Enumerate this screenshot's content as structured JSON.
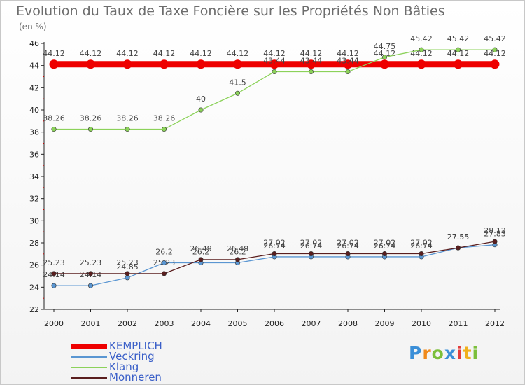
{
  "chart_data": {
    "type": "line",
    "title": "Evolution du Taux de Taxe Foncière sur les Propriétés Non Bâties",
    "ylabel": "(en %)",
    "xlabel": "",
    "categories": [
      "2000",
      "2001",
      "2002",
      "2003",
      "2004",
      "2005",
      "2006",
      "2007",
      "2008",
      "2009",
      "2010",
      "2011",
      "2012"
    ],
    "ylim": [
      22,
      46
    ],
    "yticks": [
      22,
      24,
      26,
      28,
      30,
      32,
      34,
      36,
      38,
      40,
      42,
      44,
      46
    ],
    "grid": false,
    "legend_position": "bottom-left",
    "series": [
      {
        "name": "KEMPLICH",
        "color": "#ee0000",
        "values": [
          44.12,
          44.12,
          44.12,
          44.12,
          44.12,
          44.12,
          44.12,
          44.12,
          44.12,
          44.12,
          44.12,
          44.12,
          44.12
        ],
        "labels": [
          "44.12",
          "44.12",
          "44.12",
          "44.12",
          "44.12",
          "44.12",
          "44.12",
          "44.12",
          "44.12",
          "44.12",
          "44.12",
          "44.12",
          "44.12"
        ]
      },
      {
        "name": "Veckring",
        "color": "#5a96d2",
        "values": [
          24.14,
          24.14,
          24.85,
          26.2,
          26.2,
          26.2,
          26.74,
          26.74,
          26.74,
          26.74,
          26.74,
          27.55,
          27.83
        ],
        "labels": [
          "24.14",
          "24.14",
          "24.85",
          "26.2",
          "26.2",
          "26.2",
          "26.74",
          "26.74",
          "26.74",
          "26.74",
          "26.74",
          "27.55",
          "27.83"
        ]
      },
      {
        "name": "Klang",
        "color": "#8cd25a",
        "values": [
          38.26,
          38.26,
          38.26,
          38.26,
          40,
          41.5,
          43.44,
          43.44,
          43.44,
          44.75,
          45.42,
          45.42,
          45.42
        ],
        "labels": [
          "38.26",
          "38.26",
          "38.26",
          "38.26",
          "40",
          "41.5",
          "43.44",
          "43.44",
          "43.44",
          "44.75",
          "45.42",
          "45.42",
          "45.42"
        ]
      },
      {
        "name": "Monneren",
        "color": "#5a1e1e",
        "values": [
          25.23,
          25.23,
          25.23,
          25.23,
          26.49,
          26.49,
          27.02,
          27.02,
          27.02,
          27.02,
          27.02,
          27.55,
          28.12
        ],
        "labels": [
          "25.23",
          "25.23",
          "25.23",
          "25.23",
          "26.49",
          "26.49",
          "27.02",
          "27.02",
          "27.02",
          "27.02",
          "27.02",
          "27.55",
          "28.12"
        ]
      }
    ]
  },
  "legend": {
    "items": [
      {
        "name": "KEMPLICH",
        "color": "#ee0000"
      },
      {
        "name": "Veckring",
        "color": "#5a96d2"
      },
      {
        "name": "Klang",
        "color": "#8cd25a"
      },
      {
        "name": "Monneren",
        "color": "#5a1e1e"
      }
    ]
  },
  "logo": {
    "letters": [
      "P",
      "r",
      "o",
      "x",
      "i",
      "t",
      "i"
    ],
    "colors": [
      "#3b8fd8",
      "#f08a1c",
      "#7bbf3a",
      "#3b8fd8",
      "#e23c3c",
      "#f0b01c",
      "#7bbf3a"
    ]
  }
}
